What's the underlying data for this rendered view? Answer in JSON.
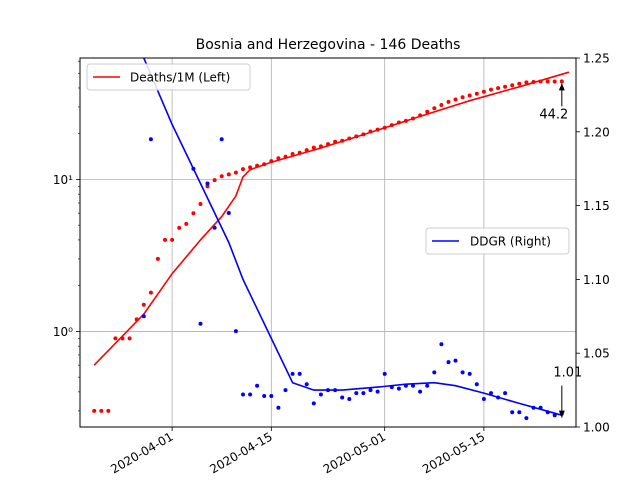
{
  "chart_data": {
    "type": "line",
    "title": "Bosnia and Herzegovina - 146 Deaths",
    "xlabel": "",
    "ylabel": "",
    "x_range": [
      "2020-03-19",
      "2020-05-28"
    ],
    "x_ticks": [
      "2020-04-01",
      "2020-04-15",
      "2020-05-01",
      "2020-05-15"
    ],
    "left_axis": {
      "scale": "log",
      "ylim": [
        0.235,
        63
      ],
      "ticks": [
        {
          "value": 1,
          "label": "10⁰"
        },
        {
          "value": 10,
          "label": "10¹"
        }
      ]
    },
    "right_axis": {
      "scale": "linear",
      "ylim": [
        1.0,
        1.25
      ],
      "ticks": [
        "1.00",
        "1.05",
        "1.10",
        "1.15",
        "1.20",
        "1.25"
      ]
    },
    "grid": true,
    "legend_left": {
      "position": "upper-left",
      "label": "Deaths/1M (Left)",
      "color": "#ff0000"
    },
    "legend_right": {
      "position": "center-right",
      "label": "DDGR (Right)",
      "color": "#0000ff"
    },
    "series": [
      {
        "name": "Deaths/1M (Left)",
        "axis": "left",
        "color": "#ff0000",
        "points_x": [
          "2020-03-21",
          "2020-03-22",
          "2020-03-23",
          "2020-03-24",
          "2020-03-25",
          "2020-03-26",
          "2020-03-27",
          "2020-03-28",
          "2020-03-29",
          "2020-03-30",
          "2020-03-31",
          "2020-04-01",
          "2020-04-02",
          "2020-04-03",
          "2020-04-04",
          "2020-04-05",
          "2020-04-06",
          "2020-04-07",
          "2020-04-08",
          "2020-04-09",
          "2020-04-10",
          "2020-04-11",
          "2020-04-12",
          "2020-04-13",
          "2020-04-14",
          "2020-04-15",
          "2020-04-16",
          "2020-04-17",
          "2020-04-18",
          "2020-04-19",
          "2020-04-20",
          "2020-04-21",
          "2020-04-22",
          "2020-04-23",
          "2020-04-24",
          "2020-04-25",
          "2020-04-26",
          "2020-04-27",
          "2020-04-28",
          "2020-04-29",
          "2020-04-30",
          "2020-05-01",
          "2020-05-02",
          "2020-05-03",
          "2020-05-04",
          "2020-05-05",
          "2020-05-06",
          "2020-05-07",
          "2020-05-08",
          "2020-05-09",
          "2020-05-10",
          "2020-05-11",
          "2020-05-12",
          "2020-05-13",
          "2020-05-14",
          "2020-05-15",
          "2020-05-16",
          "2020-05-17",
          "2020-05-18",
          "2020-05-19",
          "2020-05-20",
          "2020-05-21",
          "2020-05-22",
          "2020-05-23",
          "2020-05-24",
          "2020-05-25",
          "2020-05-26"
        ],
        "points_y": [
          0.3,
          0.3,
          0.3,
          0.9,
          0.9,
          0.9,
          1.2,
          1.5,
          1.8,
          3.0,
          4.0,
          4.0,
          4.8,
          5.1,
          6.0,
          6.9,
          9.0,
          9.9,
          10.5,
          10.8,
          11.1,
          11.7,
          12.0,
          12.3,
          12.6,
          13.2,
          13.8,
          14.1,
          14.7,
          15.0,
          15.6,
          16.2,
          16.5,
          17.1,
          17.7,
          18.0,
          18.6,
          19.2,
          19.8,
          20.7,
          21.3,
          21.9,
          22.8,
          23.7,
          24.3,
          25.2,
          26.4,
          27.9,
          29.4,
          30.9,
          32.4,
          33.6,
          34.8,
          35.7,
          36.6,
          37.8,
          39.0,
          39.9,
          40.8,
          41.7,
          42.6,
          43.5,
          43.8,
          44.1,
          44.1,
          44.1,
          44.2
        ],
        "fit_x": [
          "2020-03-21",
          "2020-03-28",
          "2020-04-01",
          "2020-04-05",
          "2020-04-08",
          "2020-04-10",
          "2020-04-11",
          "2020-04-12",
          "2020-04-15",
          "2020-04-22",
          "2020-04-29",
          "2020-05-06",
          "2020-05-13",
          "2020-05-20",
          "2020-05-27"
        ],
        "fit_y": [
          0.6,
          1.3,
          2.4,
          4.0,
          5.7,
          7.8,
          10.4,
          11.6,
          13.0,
          16.1,
          20.4,
          26.0,
          33.0,
          40.7,
          50.8
        ]
      },
      {
        "name": "DDGR (Right)",
        "axis": "right",
        "color": "#0000ff",
        "points_x": [
          "2020-03-28",
          "2020-03-29",
          "2020-04-04",
          "2020-04-05",
          "2020-04-06",
          "2020-04-07",
          "2020-04-08",
          "2020-04-09",
          "2020-04-10",
          "2020-04-11",
          "2020-04-12",
          "2020-04-13",
          "2020-04-14",
          "2020-04-15",
          "2020-04-16",
          "2020-04-17",
          "2020-04-18",
          "2020-04-19",
          "2020-04-20",
          "2020-04-21",
          "2020-04-22",
          "2020-04-23",
          "2020-04-24",
          "2020-04-25",
          "2020-04-26",
          "2020-04-27",
          "2020-04-28",
          "2020-04-29",
          "2020-04-30",
          "2020-05-01",
          "2020-05-02",
          "2020-05-03",
          "2020-05-04",
          "2020-05-05",
          "2020-05-06",
          "2020-05-07",
          "2020-05-08",
          "2020-05-09",
          "2020-05-10",
          "2020-05-11",
          "2020-05-12",
          "2020-05-13",
          "2020-05-14",
          "2020-05-15",
          "2020-05-16",
          "2020-05-17",
          "2020-05-18",
          "2020-05-19",
          "2020-05-20",
          "2020-05-21",
          "2020-05-22",
          "2020-05-23",
          "2020-05-24",
          "2020-05-25",
          "2020-05-26"
        ],
        "points_y": [
          1.075,
          1.195,
          1.175,
          1.07,
          1.165,
          1.135,
          1.195,
          1.145,
          1.065,
          1.022,
          1.022,
          1.028,
          1.021,
          1.021,
          1.013,
          1.025,
          1.036,
          1.036,
          1.029,
          1.016,
          1.022,
          1.025,
          1.025,
          1.02,
          1.019,
          1.023,
          1.023,
          1.025,
          1.024,
          1.036,
          1.027,
          1.026,
          1.028,
          1.028,
          1.024,
          1.028,
          1.037,
          1.056,
          1.044,
          1.045,
          1.037,
          1.036,
          1.029,
          1.019,
          1.023,
          1.02,
          1.023,
          1.01,
          1.01,
          1.006,
          1.013,
          1.013,
          1.01,
          1.008,
          1.009
        ],
        "fit_x": [
          "2020-03-28",
          "2020-04-01",
          "2020-04-05",
          "2020-04-09",
          "2020-04-11",
          "2020-04-15",
          "2020-04-18",
          "2020-04-21",
          "2020-04-25",
          "2020-04-30",
          "2020-05-04",
          "2020-05-08",
          "2020-05-11",
          "2020-05-15",
          "2020-05-20",
          "2020-05-26"
        ],
        "fit_y": [
          1.25,
          1.205,
          1.165,
          1.125,
          1.1,
          1.06,
          1.03,
          1.025,
          1.025,
          1.027,
          1.029,
          1.03,
          1.028,
          1.023,
          1.016,
          1.008
        ]
      }
    ],
    "annotations": [
      {
        "text": "44.2",
        "x": "2020-05-26",
        "y": 44.2,
        "axis": "left"
      },
      {
        "text": "1.01",
        "x": "2020-05-26",
        "y": 1.005,
        "axis": "right"
      }
    ]
  }
}
